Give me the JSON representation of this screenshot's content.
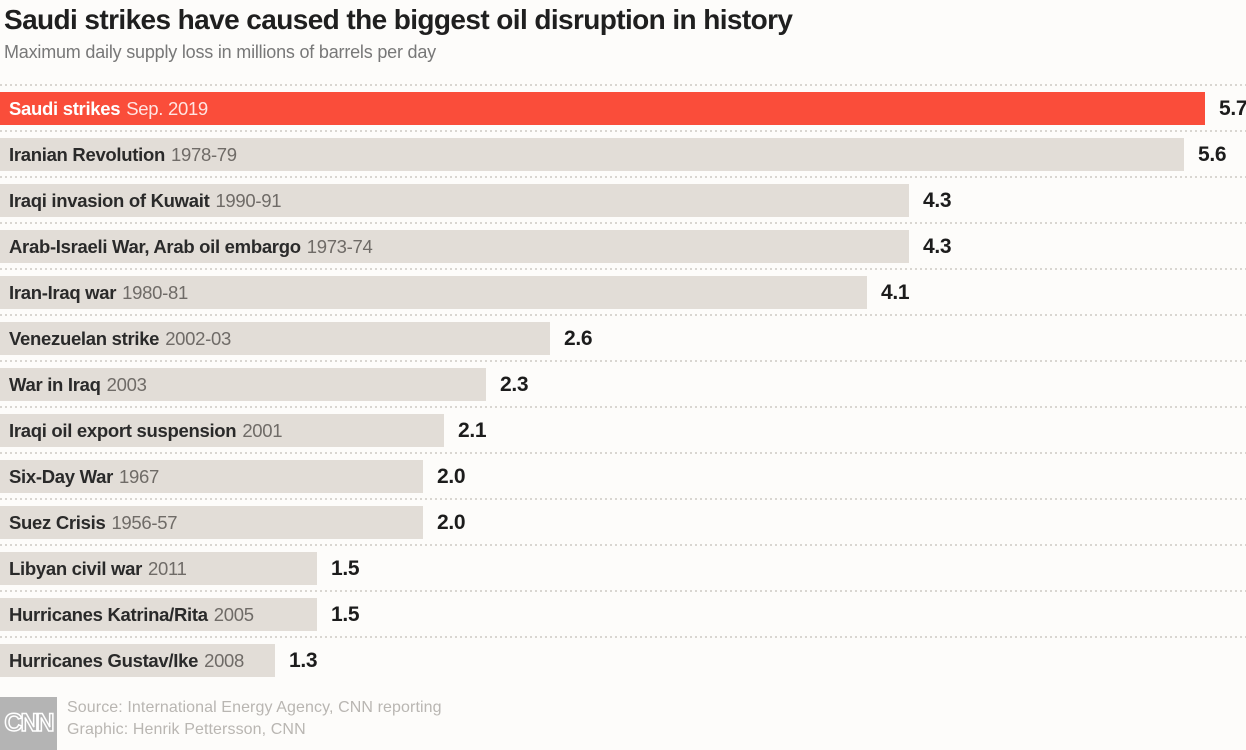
{
  "header": {
    "title": "Saudi strikes have caused the biggest oil disruption in history",
    "subtitle": "Maximum daily supply loss in millions of barrels per day"
  },
  "footer": {
    "logo_text": "CNN",
    "source_line": "Source: International Energy Agency, CNN reporting",
    "graphic_line": "Graphic: Henrik Pettersson, CNN"
  },
  "colors": {
    "highlight_bar": "#fa4d3a",
    "default_bar": "#e2ddd7",
    "bar_name_text": "#2a2a2a",
    "bar_period_text": "#6f6b67",
    "value_text": "#1c1c1c",
    "dotted_separator": "#d9d6d1",
    "footer_text": "#b9b6b2",
    "logo_box": "#b4b4b4"
  },
  "chart_data": {
    "type": "bar",
    "orientation": "horizontal",
    "title": "Saudi strikes have caused the biggest oil disruption in history",
    "subtitle": "Maximum daily supply loss in millions of barrels per day",
    "xlabel": "Millions of barrels per day",
    "ylabel": "",
    "xlim": [
      0,
      5.9
    ],
    "grid": false,
    "legend": false,
    "value_decimals": 1,
    "bars": [
      {
        "label": "Saudi strikes",
        "period": "Sep. 2019",
        "value": 5.7,
        "highlight": true
      },
      {
        "label": "Iranian Revolution",
        "period": "1978-79",
        "value": 5.6,
        "highlight": false
      },
      {
        "label": "Iraqi invasion of Kuwait",
        "period": "1990-91",
        "value": 4.3,
        "highlight": false
      },
      {
        "label": "Arab-Israeli War, Arab oil embargo",
        "period": "1973-74",
        "value": 4.3,
        "highlight": false
      },
      {
        "label": "Iran-Iraq war",
        "period": "1980-81",
        "value": 4.1,
        "highlight": false
      },
      {
        "label": "Venezuelan strike",
        "period": "2002-03",
        "value": 2.6,
        "highlight": false
      },
      {
        "label": "War in Iraq",
        "period": "2003",
        "value": 2.3,
        "highlight": false
      },
      {
        "label": "Iraqi oil export suspension",
        "period": "2001",
        "value": 2.1,
        "highlight": false
      },
      {
        "label": "Six-Day War",
        "period": "1967",
        "value": 2.0,
        "highlight": false
      },
      {
        "label": "Suez Crisis",
        "period": "1956-57",
        "value": 2.0,
        "highlight": false
      },
      {
        "label": "Libyan civil war",
        "period": "2011",
        "value": 1.5,
        "highlight": false
      },
      {
        "label": "Hurricanes Katrina/Rita",
        "period": "2005",
        "value": 1.5,
        "highlight": false
      },
      {
        "label": "Hurricanes Gustav/Ike",
        "period": "2008",
        "value": 1.3,
        "highlight": false
      }
    ]
  }
}
